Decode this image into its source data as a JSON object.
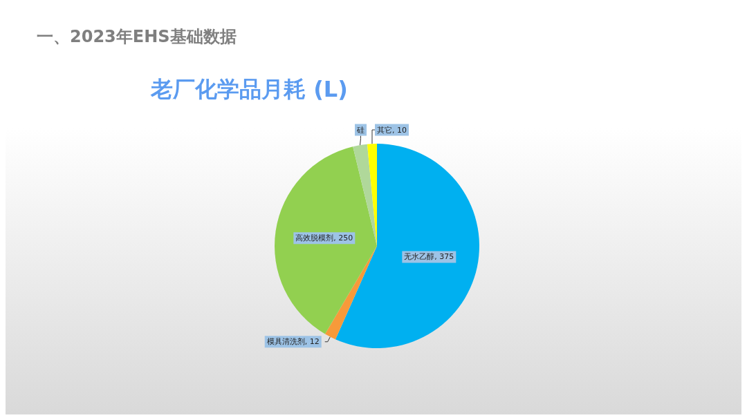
{
  "chart_data": {
    "type": "pie",
    "title": "一、2023年EHS基础数据",
    "subtitle": "老厂化学品月耗 (L)",
    "categories": [
      "无水乙醇",
      "模具清洗剂",
      "高效脱模剂",
      "硅",
      "其它"
    ],
    "values": [
      375,
      12,
      250,
      15,
      10
    ],
    "value_labels": [
      "375",
      "12",
      "250",
      null,
      "10"
    ],
    "colors": [
      "#00b0f0",
      "#f79a3a",
      "#92d050",
      "#b0d89a",
      "#ffff00"
    ],
    "legend": false
  }
}
